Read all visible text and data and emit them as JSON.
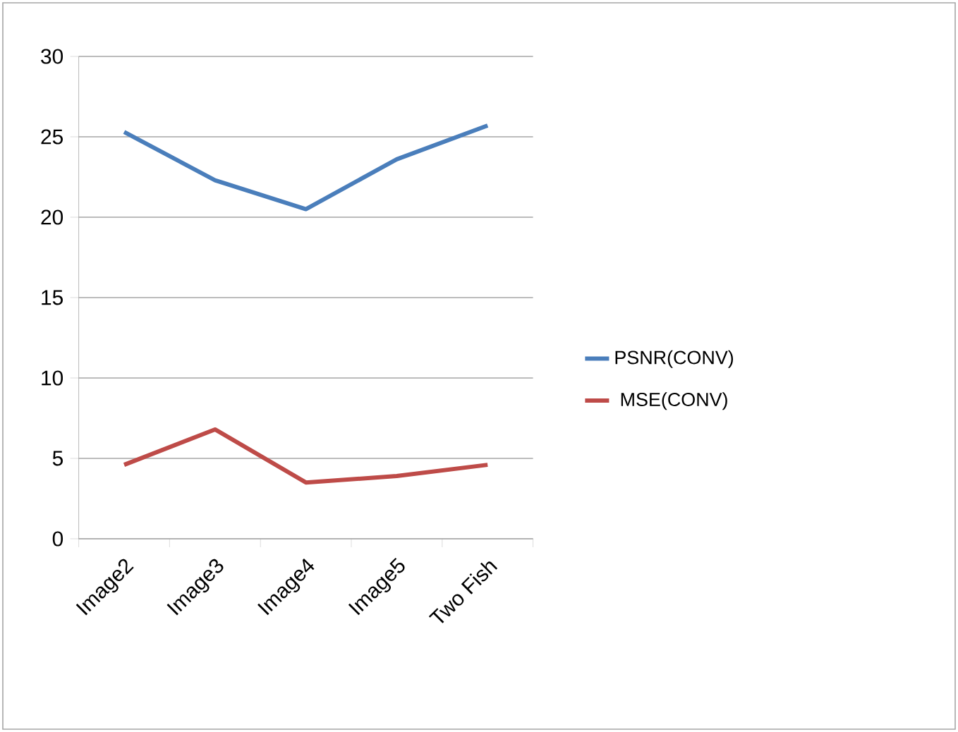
{
  "chart_data": {
    "type": "line",
    "categories": [
      "Image2",
      "Image3",
      "Image4",
      "Image5",
      "Two Fish"
    ],
    "series": [
      {
        "name": "PSNR(CONV)",
        "color": "#4a7ebb",
        "values": [
          25.3,
          22.3,
          20.5,
          23.6,
          25.7
        ]
      },
      {
        "name": "MSE(CONV)",
        "color": "#be4b48",
        "values": [
          4.6,
          6.8,
          3.5,
          3.9,
          4.6
        ]
      }
    ],
    "ylim": [
      0,
      30
    ],
    "yticks": [
      0,
      5,
      10,
      15,
      20,
      25,
      30
    ],
    "grid": "y",
    "legend": "right",
    "marker": "none",
    "line_style": "solid"
  }
}
